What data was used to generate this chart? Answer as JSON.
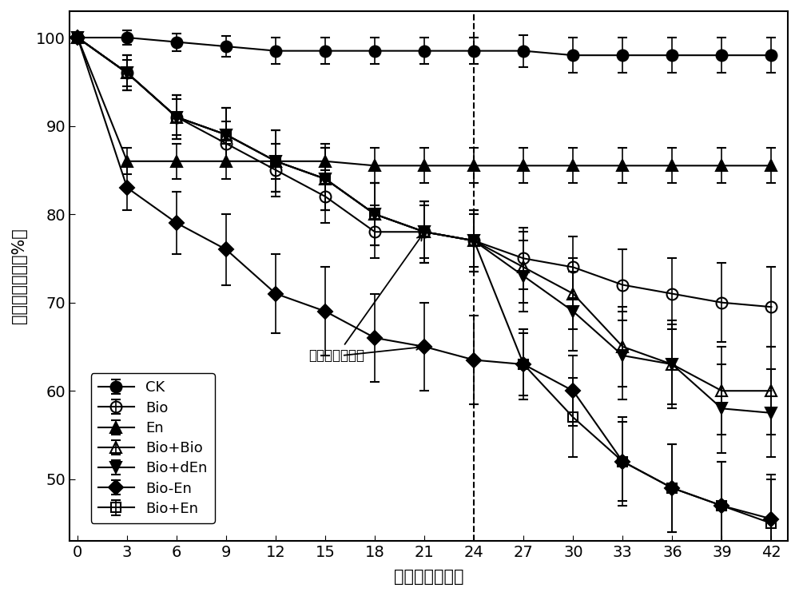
{
  "x": [
    0,
    3,
    6,
    9,
    12,
    15,
    18,
    21,
    24,
    27,
    30,
    33,
    36,
    39,
    42
  ],
  "series": {
    "CK": {
      "y": [
        100,
        100,
        99.5,
        99,
        98.5,
        98.5,
        98.5,
        98.5,
        98.5,
        98.5,
        98,
        98,
        98,
        98,
        98
      ],
      "yerr": [
        0.5,
        0.8,
        1.0,
        1.2,
        1.5,
        1.5,
        1.5,
        1.5,
        1.5,
        1.8,
        2.0,
        2.0,
        2.0,
        2.0,
        2.0
      ],
      "marker": "o",
      "fillstyle": "full",
      "markersize": 10,
      "label": "CK"
    },
    "Bio": {
      "y": [
        100,
        96,
        91,
        88,
        85,
        82,
        78,
        78,
        77,
        75,
        74,
        72,
        71,
        70,
        69.5
      ],
      "yerr": [
        0.5,
        1.5,
        2.0,
        2.5,
        3.0,
        3.0,
        3.0,
        3.0,
        3.0,
        3.5,
        3.5,
        4.0,
        4.0,
        4.5,
        4.5
      ],
      "marker": "o",
      "fillstyle": "none",
      "markersize": 10,
      "label": "Bio"
    },
    "En": {
      "y": [
        100,
        86,
        86,
        86,
        86,
        86,
        85.5,
        85.5,
        85.5,
        85.5,
        85.5,
        85.5,
        85.5,
        85.5,
        85.5
      ],
      "yerr": [
        0.5,
        1.5,
        2.0,
        2.0,
        2.0,
        2.0,
        2.0,
        2.0,
        2.0,
        2.0,
        2.0,
        2.0,
        2.0,
        2.0,
        2.0
      ],
      "marker": "^",
      "fillstyle": "full",
      "markersize": 10,
      "label": "En"
    },
    "Bio+Bio": {
      "y": [
        100,
        96,
        91,
        89,
        86,
        84,
        80,
        78,
        77,
        74,
        71,
        65,
        63,
        60,
        60
      ],
      "yerr": [
        0.5,
        2.0,
        2.5,
        3.0,
        3.5,
        3.5,
        3.5,
        3.5,
        3.5,
        4.0,
        4.0,
        4.5,
        4.5,
        5.0,
        5.0
      ],
      "marker": "^",
      "fillstyle": "none",
      "markersize": 10,
      "label": "Bio+Bio"
    },
    "Bio+dEn": {
      "y": [
        100,
        96,
        91,
        89,
        86,
        84,
        80,
        78,
        77,
        73,
        69,
        64,
        63,
        58,
        57.5
      ],
      "yerr": [
        0.5,
        2.0,
        2.5,
        3.0,
        3.5,
        3.5,
        3.5,
        3.5,
        3.5,
        4.0,
        4.5,
        5.0,
        5.0,
        5.0,
        5.0
      ],
      "marker": "v",
      "fillstyle": "full",
      "markersize": 10,
      "label": "Bio+dEn"
    },
    "Bio-En": {
      "y": [
        100,
        83,
        79,
        76,
        71,
        69,
        66,
        65,
        63.5,
        63,
        60,
        52,
        49,
        47,
        45.5
      ],
      "yerr": [
        0.5,
        2.5,
        3.5,
        4.0,
        4.5,
        5.0,
        5.0,
        5.0,
        5.0,
        3.5,
        4.0,
        4.5,
        5.0,
        5.0,
        5.0
      ],
      "marker": "D",
      "fillstyle": "full",
      "markersize": 9,
      "label": "Bio-En"
    },
    "Bio+En": {
      "y": [
        100,
        96,
        91,
        89,
        86,
        84,
        80,
        78,
        77,
        63,
        57,
        52,
        49,
        47,
        45
      ],
      "yerr": [
        0.5,
        2.0,
        2.5,
        3.0,
        3.5,
        3.5,
        3.5,
        3.5,
        3.5,
        4.0,
        4.5,
        5.0,
        5.0,
        5.0,
        5.0
      ],
      "marker": "s",
      "fillstyle": "none",
      "markersize": 9,
      "label": "Bio+En"
    }
  },
  "series_order": [
    "CK",
    "Bio",
    "En",
    "Bio+Bio",
    "Bio+dEn",
    "Bio-En",
    "Bio+En"
  ],
  "xlim": [
    -0.5,
    43
  ],
  "ylim": [
    43,
    103
  ],
  "xticks": [
    0,
    3,
    6,
    9,
    12,
    15,
    18,
    21,
    24,
    27,
    30,
    33,
    36,
    39,
    42
  ],
  "yticks": [
    50,
    60,
    70,
    80,
    90,
    100
  ],
  "xlabel": "处理时间（天）",
  "ylabel": "石油炃残留率（%）",
  "vline_x": 24,
  "annotation_text": "菌剂／醂剂补给",
  "fontsize_tick": 14,
  "fontsize_label": 15,
  "fontsize_legend": 13,
  "fontsize_annotation": 12
}
